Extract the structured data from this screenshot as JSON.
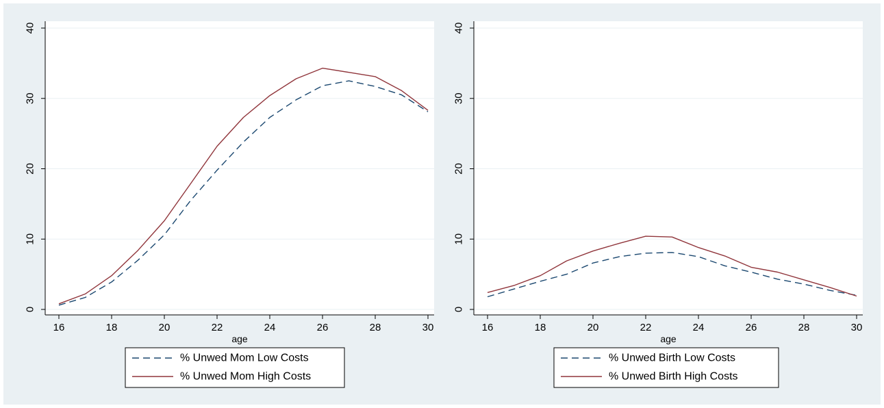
{
  "colors": {
    "background": "#eaf0f3",
    "plot_bg": "#ffffff",
    "gridline": "#eaf0f3",
    "low_series": "#1a476f",
    "high_series": "#90353b"
  },
  "chart_data": [
    {
      "type": "line",
      "xlabel": "age",
      "ylabel": "",
      "xlim": [
        15,
        30.3
      ],
      "ylim": [
        -1,
        40.5
      ],
      "xticks": [
        "16",
        "18",
        "20",
        "22",
        "24",
        "26",
        "28",
        "30"
      ],
      "yticks": [
        "0",
        "10",
        "20",
        "30",
        "40"
      ],
      "grid": true,
      "legend_position": "bottom",
      "x": [
        16,
        17,
        18,
        19,
        20,
        21,
        22,
        23,
        24,
        25,
        26,
        27,
        28,
        29,
        30
      ],
      "series": [
        {
          "name": "% Unwed Mom Low Costs",
          "style": "dashed",
          "values": [
            0.6,
            1.7,
            3.9,
            7.0,
            10.6,
            15.5,
            19.8,
            23.8,
            27.3,
            29.8,
            31.8,
            32.5,
            31.7,
            30.5,
            28.1
          ]
        },
        {
          "name": "% Unwed Mom High Costs",
          "style": "solid",
          "values": [
            0.8,
            2.2,
            4.8,
            8.4,
            12.6,
            17.9,
            23.2,
            27.3,
            30.4,
            32.8,
            34.3,
            33.7,
            33.1,
            31.1,
            28.3
          ]
        }
      ]
    },
    {
      "type": "line",
      "xlabel": "age",
      "ylabel": "",
      "xlim": [
        15,
        30.3
      ],
      "ylim": [
        -1,
        40.5
      ],
      "xticks": [
        "16",
        "18",
        "20",
        "22",
        "24",
        "26",
        "28",
        "30"
      ],
      "yticks": [
        "0",
        "10",
        "20",
        "30",
        "40"
      ],
      "grid": true,
      "legend_position": "bottom",
      "x": [
        16,
        17,
        18,
        19,
        20,
        21,
        22,
        23,
        24,
        25,
        26,
        27,
        28,
        29,
        30
      ],
      "series": [
        {
          "name": "% Unwed Birth Low Costs",
          "style": "dashed",
          "values": [
            1.8,
            2.9,
            4.0,
            5.0,
            6.6,
            7.5,
            8.0,
            8.1,
            7.5,
            6.2,
            5.3,
            4.3,
            3.6,
            2.7,
            2.0
          ]
        },
        {
          "name": "% Unwed Birth High Costs",
          "style": "solid",
          "values": [
            2.4,
            3.4,
            4.8,
            6.9,
            8.3,
            9.4,
            10.4,
            10.3,
            8.8,
            7.6,
            6.0,
            5.3,
            4.2,
            3.1,
            1.9
          ]
        }
      ]
    }
  ]
}
